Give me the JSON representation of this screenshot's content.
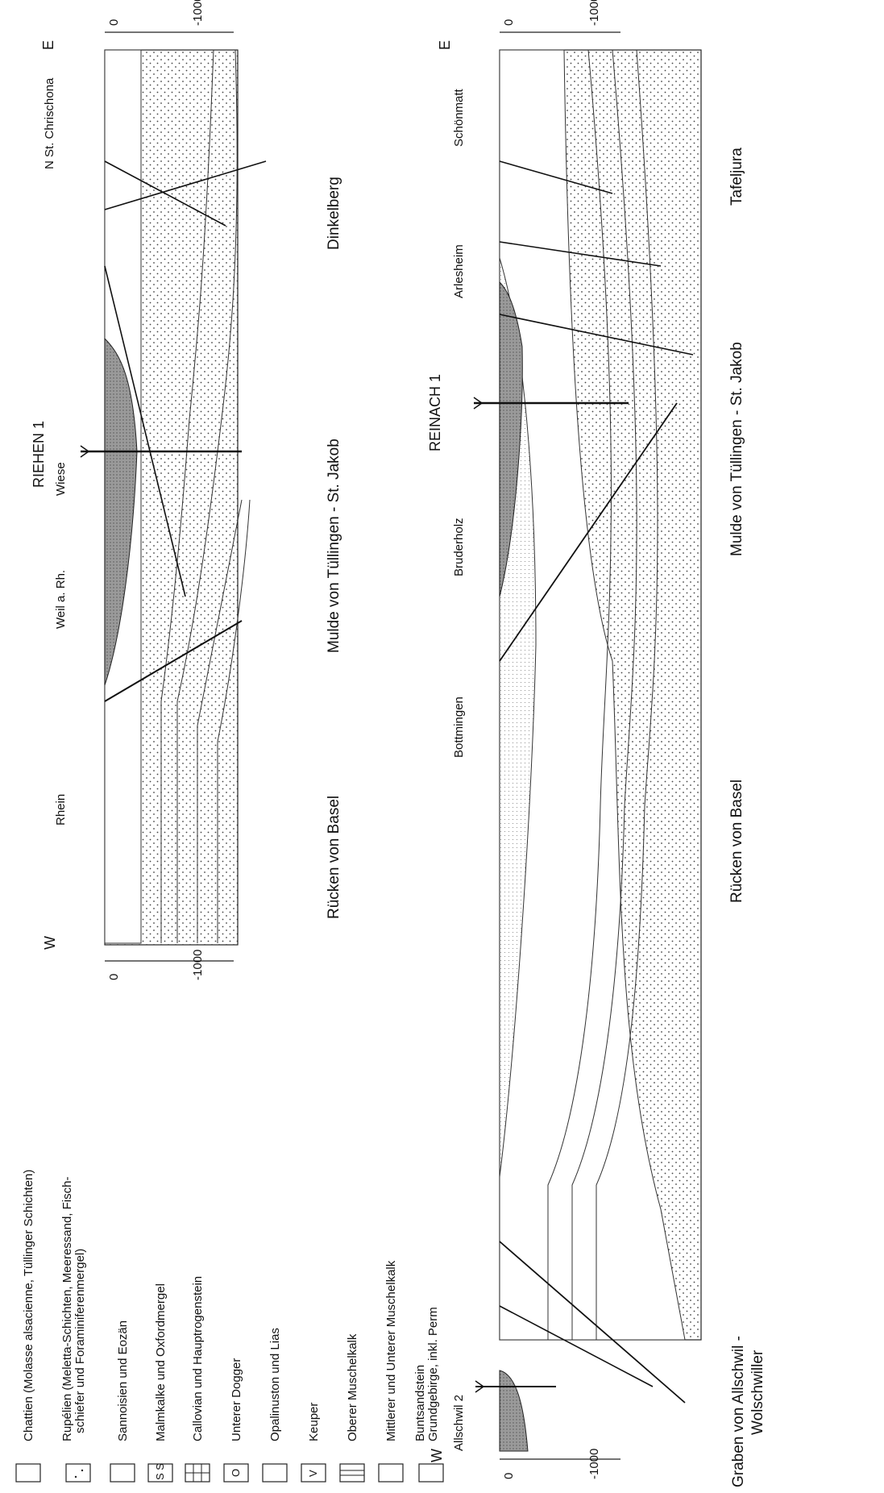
{
  "legend": {
    "items": [
      {
        "text": "Chattien (Molasse alsacienne, Tüllinger Schichten)",
        "symbol": "dark-stipple-swatch"
      },
      {
        "text": "Rupélien (Meletta-Schichten, Meeressand, Fisch-",
        "text2": "schiefer und Foraminiferenmergel)",
        "symbol": "dotted-swatch"
      },
      {
        "text": "Sannoisien und Eozän",
        "symbol": "fine-dot-swatch"
      },
      {
        "text": "Malmkalke und Oxfordmergel",
        "symbol": "s-symbol-swatch",
        "glyph": "S S"
      },
      {
        "text": "Callovian und Hauptrogenstein",
        "symbol": "grid-swatch"
      },
      {
        "text": "Unterer Dogger",
        "symbol": "circle-swatch",
        "glyph": "O"
      },
      {
        "text": "Opalinuston und Lias",
        "symbol": "blank-swatch"
      },
      {
        "text": "Keuper",
        "symbol": "v-symbol-swatch",
        "glyph": "V"
      },
      {
        "text": "Oberer Muschelkalk",
        "symbol": "bars-swatch"
      },
      {
        "text": "Mittlerer und Unterer Muschelkalk",
        "symbol": "blank-swatch"
      },
      {
        "text": "Buntsandstein",
        "text2": "Grundgebirge, inkl. Perm",
        "symbol": "coarse-dot-swatch"
      }
    ]
  },
  "section_top": {
    "west": "W",
    "east": "E",
    "places": [
      "Rhein",
      "Weil a. Rh.",
      "Wiese",
      "N St. Chrischona"
    ],
    "well": "RIEHEN 1",
    "depth_ticks": [
      "0",
      "-1000"
    ],
    "regions": [
      "Rücken von Basel",
      "Mulde von Tüllingen - St. Jakob",
      "Dinkelberg"
    ]
  },
  "section_bottom": {
    "west": "W",
    "east": "E",
    "places": [
      "Allschwil 2",
      "Bottmingen",
      "Bruderholz",
      "Arlesheim",
      "Schönmatt"
    ],
    "well": "REINACH 1",
    "depth_ticks": [
      "0",
      "-1000"
    ],
    "regions": [
      "Graben von Allschwil -",
      "Wolschwiller",
      "Rücken von Basel",
      "Mulde von Tüllingen - St. Jakob",
      "Tafeljura"
    ]
  },
  "colors": {
    "ink": "#111111",
    "chattien_fill": "#9a9a9a",
    "paper": "#ffffff"
  }
}
